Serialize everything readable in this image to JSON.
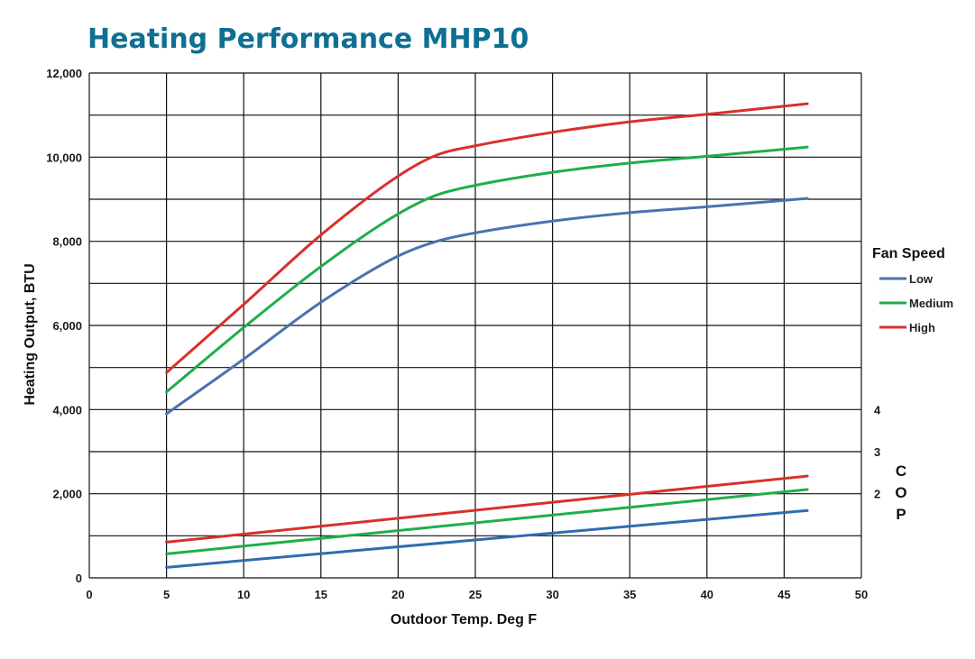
{
  "chart_data": {
    "type": "line",
    "title": "Heating Performance MHP10",
    "title_color": "#0f6f93",
    "xlabel": "Outdoor Temp. Deg F",
    "ylabel": "Heating Output, BTU",
    "y2label": "COP",
    "xlim": [
      0,
      50
    ],
    "ylim": [
      0,
      12000
    ],
    "x_ticks": [
      "0",
      "5",
      "10",
      "15",
      "20",
      "25",
      "30",
      "35",
      "40",
      "45",
      "50"
    ],
    "y_ticks": [
      "0",
      "2,000",
      "4,000",
      "6,000",
      "8,000",
      "10,000",
      "12,000"
    ],
    "y2_ticks": [
      {
        "label": "2",
        "value": 2
      },
      {
        "label": "3",
        "value": 3
      },
      {
        "label": "4",
        "value": 4
      }
    ],
    "y2_mapping": {
      "cop_at_zero_btu": 0,
      "btu_per_cop": 1000
    },
    "grid": true,
    "legend": {
      "title": "Fan Speed",
      "placement": "right",
      "entries": [
        "Low",
        "Medium",
        "High"
      ]
    },
    "series": [
      {
        "name": "Low",
        "axis": "btu",
        "color": "#4a72b0",
        "x": [
          5,
          10,
          15,
          20,
          22.5,
          25,
          30,
          35,
          40,
          46.5
        ],
        "values": [
          3900,
          5200,
          6550,
          7650,
          8000,
          8200,
          8480,
          8680,
          8820,
          9020
        ]
      },
      {
        "name": "Medium",
        "axis": "btu",
        "color": "#1fae4b",
        "x": [
          5,
          10,
          15,
          20,
          22.5,
          25,
          30,
          35,
          40,
          46.5
        ],
        "values": [
          4420,
          5950,
          7400,
          8650,
          9100,
          9330,
          9640,
          9860,
          10020,
          10240
        ]
      },
      {
        "name": "High",
        "axis": "btu",
        "color": "#d9302b",
        "x": [
          5,
          10,
          15,
          20,
          22.5,
          25,
          30,
          35,
          40,
          46.5
        ],
        "values": [
          4880,
          6500,
          8150,
          9550,
          10050,
          10270,
          10590,
          10840,
          11020,
          11270
        ]
      },
      {
        "name": "Low",
        "axis": "cop",
        "color": "#2f6cb0",
        "x": [
          5,
          46.5
        ],
        "values": [
          0.25,
          1.6
        ]
      },
      {
        "name": "Medium",
        "axis": "cop",
        "color": "#1fae4b",
        "x": [
          5,
          46.5
        ],
        "values": [
          0.57,
          2.1
        ]
      },
      {
        "name": "High",
        "axis": "cop",
        "color": "#d9302b",
        "x": [
          5,
          46.5
        ],
        "values": [
          0.85,
          2.42
        ]
      }
    ]
  }
}
